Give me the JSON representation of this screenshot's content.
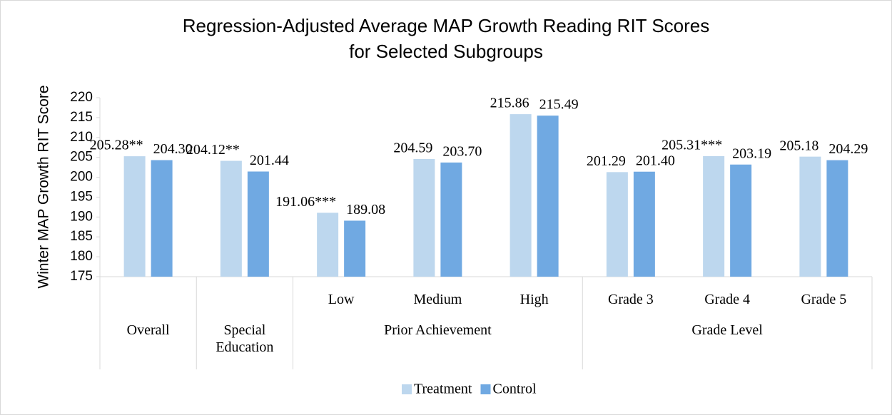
{
  "chart_data": {
    "type": "bar",
    "title": "Regression-Adjusted Average MAP Growth Reading RIT Scores for Selected Subgroups",
    "y_label": "Winter MAP Growth RIT Score",
    "groups": [
      {
        "label": "Overall",
        "categories": [
          null
        ]
      },
      {
        "label": "Special Education",
        "categories": [
          null
        ]
      },
      {
        "label": "Prior Achievement",
        "categories": [
          "Low",
          "Medium",
          "High"
        ]
      },
      {
        "label": "Grade Level",
        "categories": [
          "Grade 3",
          "Grade 4",
          "Grade 5"
        ]
      }
    ],
    "series": [
      {
        "name": "Treatment",
        "color": "#bdd7ee",
        "values": [
          205.28,
          204.12,
          191.06,
          204.59,
          215.86,
          201.29,
          205.31,
          205.18
        ],
        "value_labels": [
          "205.28**",
          "204.12**",
          "191.06***",
          "204.59",
          "215.86",
          "201.29",
          "205.31***",
          "205.18"
        ]
      },
      {
        "name": "Control",
        "color": "#70a9e2",
        "values": [
          204.3,
          201.44,
          189.08,
          203.7,
          215.49,
          201.4,
          203.19,
          204.29
        ],
        "value_labels": [
          "204.30",
          "201.44",
          "189.08",
          "203.70",
          "215.49",
          "201.40",
          "203.19",
          "204.29"
        ]
      }
    ],
    "ylim": [
      175,
      220
    ],
    "yticks": [
      175,
      180,
      185,
      190,
      195,
      200,
      205,
      210,
      215,
      220
    ],
    "legend": "bottom"
  }
}
